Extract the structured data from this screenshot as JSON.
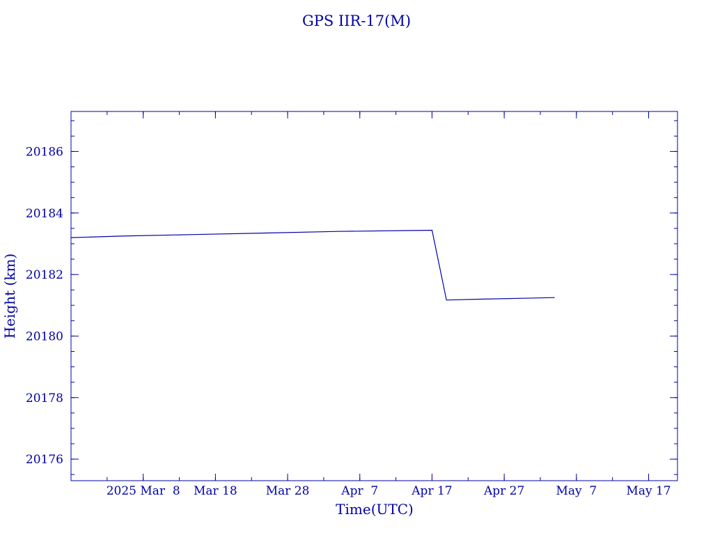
{
  "chart_data": {
    "type": "line",
    "title": "GPS IIR-17(M)",
    "xlabel": "Time(UTC)",
    "ylabel": "Height (km)",
    "x_ticks": [
      "2025 Mar  8",
      "Mar 18",
      "Mar 28",
      "Apr  7",
      "Apr 17",
      "Apr 27",
      "May  7",
      "May 17"
    ],
    "x_tick_dates": [
      "2025-03-08",
      "2025-03-18",
      "2025-03-28",
      "2025-04-07",
      "2025-04-17",
      "2025-04-27",
      "2025-05-07",
      "2025-05-17"
    ],
    "xlim": [
      "2025-02-26",
      "2025-05-21"
    ],
    "y_ticks": [
      "20176",
      "20178",
      "20180",
      "20182",
      "20184",
      "20186"
    ],
    "ylim": [
      20175.3,
      20187.3
    ],
    "grid": false,
    "series": [
      {
        "x": [
          "2025-02-26",
          "2025-03-05",
          "2025-03-15",
          "2025-03-25",
          "2025-04-04",
          "2025-04-14",
          "2025-04-17",
          "2025-04-19",
          "2025-04-24",
          "2025-05-04"
        ],
        "y": [
          20183.2,
          20183.25,
          20183.3,
          20183.35,
          20183.4,
          20183.43,
          20183.44,
          20181.17,
          20181.2,
          20181.25
        ]
      }
    ],
    "colors": {
      "ink": "#0000a8",
      "background": "#ffffff"
    }
  }
}
